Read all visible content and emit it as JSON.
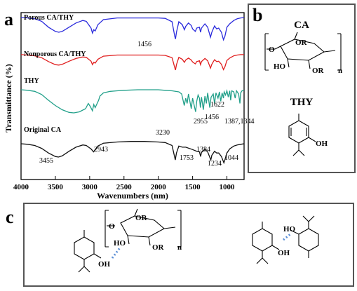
{
  "panels": {
    "a": "a",
    "b": "b",
    "c": "c"
  },
  "chart_data": {
    "type": "line",
    "xlabel": "Wavenumbers (nm)",
    "ylabel": "Transmittance (%)",
    "xlim": [
      4000,
      750
    ],
    "x_reversed": true,
    "xticks": [
      "4000",
      "3500",
      "3000",
      "2500",
      "2000",
      "1500",
      "1000"
    ],
    "grid": false,
    "series": [
      {
        "name": "Porous CA/THY",
        "color": "#2b2bdc",
        "annotations": [
          "1456"
        ],
        "points": [
          [
            4000,
            0.75
          ],
          [
            3900,
            0.74
          ],
          [
            3800,
            0.72
          ],
          [
            3700,
            0.66
          ],
          [
            3600,
            0.52
          ],
          [
            3500,
            0.42
          ],
          [
            3450,
            0.4
          ],
          [
            3400,
            0.42
          ],
          [
            3300,
            0.52
          ],
          [
            3200,
            0.62
          ],
          [
            3100,
            0.68
          ],
          [
            3050,
            0.66
          ],
          [
            2980,
            0.5
          ],
          [
            2960,
            0.38
          ],
          [
            2940,
            0.46
          ],
          [
            2920,
            0.43
          ],
          [
            2880,
            0.58
          ],
          [
            2800,
            0.7
          ],
          [
            2600,
            0.74
          ],
          [
            2400,
            0.74
          ],
          [
            2200,
            0.74
          ],
          [
            2000,
            0.74
          ],
          [
            1900,
            0.73
          ],
          [
            1800,
            0.65
          ],
          [
            1760,
            0.3
          ],
          [
            1750,
            0.24
          ],
          [
            1735,
            0.4
          ],
          [
            1700,
            0.65
          ],
          [
            1650,
            0.58
          ],
          [
            1620,
            0.46
          ],
          [
            1600,
            0.54
          ],
          [
            1560,
            0.62
          ],
          [
            1520,
            0.56
          ],
          [
            1500,
            0.48
          ],
          [
            1460,
            0.42
          ],
          [
            1440,
            0.5
          ],
          [
            1400,
            0.52
          ],
          [
            1385,
            0.4
          ],
          [
            1370,
            0.5
          ],
          [
            1320,
            0.6
          ],
          [
            1280,
            0.52
          ],
          [
            1240,
            0.28
          ],
          [
            1220,
            0.4
          ],
          [
            1180,
            0.55
          ],
          [
            1150,
            0.48
          ],
          [
            1120,
            0.5
          ],
          [
            1080,
            0.4
          ],
          [
            1050,
            0.22
          ],
          [
            1030,
            0.3
          ],
          [
            1000,
            0.52
          ],
          [
            960,
            0.6
          ],
          [
            900,
            0.68
          ],
          [
            850,
            0.72
          ],
          [
            800,
            0.74
          ],
          [
            750,
            0.75
          ]
        ]
      },
      {
        "name": "Nonporous CA/THY",
        "color": "#e01e1e",
        "annotations": [],
        "points": [
          [
            4000,
            0.62
          ],
          [
            3900,
            0.61
          ],
          [
            3800,
            0.59
          ],
          [
            3700,
            0.54
          ],
          [
            3600,
            0.44
          ],
          [
            3500,
            0.36
          ],
          [
            3450,
            0.35
          ],
          [
            3400,
            0.37
          ],
          [
            3300,
            0.45
          ],
          [
            3200,
            0.52
          ],
          [
            3100,
            0.56
          ],
          [
            3050,
            0.55
          ],
          [
            2980,
            0.45
          ],
          [
            2960,
            0.36
          ],
          [
            2940,
            0.42
          ],
          [
            2920,
            0.4
          ],
          [
            2880,
            0.5
          ],
          [
            2800,
            0.58
          ],
          [
            2600,
            0.61
          ],
          [
            2400,
            0.61
          ],
          [
            2200,
            0.61
          ],
          [
            2000,
            0.61
          ],
          [
            1900,
            0.6
          ],
          [
            1800,
            0.54
          ],
          [
            1760,
            0.28
          ],
          [
            1750,
            0.22
          ],
          [
            1735,
            0.36
          ],
          [
            1700,
            0.55
          ],
          [
            1650,
            0.5
          ],
          [
            1620,
            0.42
          ],
          [
            1600,
            0.48
          ],
          [
            1560,
            0.53
          ],
          [
            1520,
            0.48
          ],
          [
            1500,
            0.43
          ],
          [
            1460,
            0.38
          ],
          [
            1440,
            0.44
          ],
          [
            1400,
            0.46
          ],
          [
            1385,
            0.36
          ],
          [
            1370,
            0.44
          ],
          [
            1320,
            0.52
          ],
          [
            1280,
            0.46
          ],
          [
            1240,
            0.27
          ],
          [
            1220,
            0.37
          ],
          [
            1180,
            0.49
          ],
          [
            1150,
            0.44
          ],
          [
            1120,
            0.45
          ],
          [
            1080,
            0.37
          ],
          [
            1050,
            0.23
          ],
          [
            1030,
            0.3
          ],
          [
            1000,
            0.47
          ],
          [
            960,
            0.53
          ],
          [
            900,
            0.59
          ],
          [
            850,
            0.61
          ],
          [
            800,
            0.62
          ],
          [
            750,
            0.62
          ]
        ]
      },
      {
        "name": "THY",
        "color": "#22a08a",
        "annotations": [
          "3230",
          "2955",
          "1622",
          "1456",
          "1387,1344"
        ],
        "points": [
          [
            4000,
            0.56
          ],
          [
            3900,
            0.55
          ],
          [
            3800,
            0.53
          ],
          [
            3700,
            0.47
          ],
          [
            3600,
            0.36
          ],
          [
            3500,
            0.26
          ],
          [
            3400,
            0.18
          ],
          [
            3300,
            0.13
          ],
          [
            3230,
            0.12
          ],
          [
            3150,
            0.14
          ],
          [
            3060,
            0.2
          ],
          [
            3020,
            0.3
          ],
          [
            2990,
            0.24
          ],
          [
            2960,
            0.16
          ],
          [
            2940,
            0.28
          ],
          [
            2920,
            0.22
          ],
          [
            2870,
            0.36
          ],
          [
            2850,
            0.44
          ],
          [
            2800,
            0.5
          ],
          [
            2700,
            0.53
          ],
          [
            2600,
            0.54
          ],
          [
            2500,
            0.55
          ],
          [
            2300,
            0.56
          ],
          [
            2100,
            0.56
          ],
          [
            2000,
            0.56
          ],
          [
            1900,
            0.55
          ],
          [
            1800,
            0.54
          ],
          [
            1700,
            0.52
          ],
          [
            1660,
            0.48
          ],
          [
            1622,
            0.26
          ],
          [
            1600,
            0.4
          ],
          [
            1580,
            0.3
          ],
          [
            1560,
            0.48
          ],
          [
            1520,
            0.2
          ],
          [
            1500,
            0.4
          ],
          [
            1480,
            0.28
          ],
          [
            1456,
            0.14
          ],
          [
            1440,
            0.34
          ],
          [
            1420,
            0.46
          ],
          [
            1400,
            0.4
          ],
          [
            1387,
            0.22
          ],
          [
            1370,
            0.42
          ],
          [
            1344,
            0.18
          ],
          [
            1320,
            0.44
          ],
          [
            1300,
            0.3
          ],
          [
            1280,
            0.5
          ],
          [
            1250,
            0.22
          ],
          [
            1230,
            0.42
          ],
          [
            1200,
            0.48
          ],
          [
            1180,
            0.3
          ],
          [
            1160,
            0.5
          ],
          [
            1130,
            0.4
          ],
          [
            1110,
            0.52
          ],
          [
            1090,
            0.34
          ],
          [
            1070,
            0.5
          ],
          [
            1050,
            0.4
          ],
          [
            1040,
            0.52
          ],
          [
            1020,
            0.46
          ],
          [
            1000,
            0.54
          ],
          [
            980,
            0.42
          ],
          [
            960,
            0.54
          ],
          [
            945,
            0.36
          ],
          [
            930,
            0.54
          ],
          [
            900,
            0.52
          ],
          [
            880,
            0.4
          ],
          [
            860,
            0.54
          ],
          [
            830,
            0.48
          ],
          [
            810,
            0.3
          ],
          [
            800,
            0.5
          ],
          [
            780,
            0.54
          ],
          [
            750,
            0.55
          ]
        ]
      },
      {
        "name": "Original CA",
        "color": "#111111",
        "annotations": [
          "3455",
          "2943",
          "1753",
          "1384",
          "1234",
          "1044"
        ],
        "points": [
          [
            4000,
            0.4
          ],
          [
            3900,
            0.39
          ],
          [
            3800,
            0.37
          ],
          [
            3700,
            0.32
          ],
          [
            3600,
            0.24
          ],
          [
            3500,
            0.18
          ],
          [
            3455,
            0.17
          ],
          [
            3400,
            0.19
          ],
          [
            3300,
            0.27
          ],
          [
            3200,
            0.34
          ],
          [
            3100,
            0.38
          ],
          [
            3050,
            0.37
          ],
          [
            2980,
            0.31
          ],
          [
            2943,
            0.26
          ],
          [
            2920,
            0.3
          ],
          [
            2880,
            0.36
          ],
          [
            2800,
            0.41
          ],
          [
            2600,
            0.43
          ],
          [
            2400,
            0.44
          ],
          [
            2200,
            0.44
          ],
          [
            2000,
            0.43
          ],
          [
            1900,
            0.42
          ],
          [
            1800,
            0.37
          ],
          [
            1760,
            0.16
          ],
          [
            1753,
            0.12
          ],
          [
            1735,
            0.24
          ],
          [
            1700,
            0.36
          ],
          [
            1650,
            0.34
          ],
          [
            1600,
            0.34
          ],
          [
            1500,
            0.3
          ],
          [
            1440,
            0.27
          ],
          [
            1400,
            0.26
          ],
          [
            1384,
            0.18
          ],
          [
            1370,
            0.25
          ],
          [
            1320,
            0.3
          ],
          [
            1280,
            0.26
          ],
          [
            1234,
            0.12
          ],
          [
            1220,
            0.2
          ],
          [
            1180,
            0.27
          ],
          [
            1150,
            0.24
          ],
          [
            1120,
            0.24
          ],
          [
            1080,
            0.18
          ],
          [
            1044,
            0.07
          ],
          [
            1030,
            0.12
          ],
          [
            1000,
            0.24
          ],
          [
            960,
            0.31
          ],
          [
            900,
            0.36
          ],
          [
            850,
            0.38
          ],
          [
            800,
            0.39
          ],
          [
            750,
            0.4
          ]
        ]
      }
    ]
  },
  "structures": {
    "b": {
      "ca_title": "CA",
      "thy_title": "THY",
      "ca_labels": [
        "OR",
        "O",
        "HO",
        "OR",
        "n"
      ],
      "thy_labels": [
        "OH"
      ]
    },
    "c": {
      "left_labels": [
        "OR",
        "O",
        "HO",
        "OR",
        "OH",
        "n"
      ],
      "right_labels": [
        "HO",
        "OH"
      ]
    }
  },
  "colors": {
    "hbond": "#5b8fd6",
    "frame": "#555555"
  }
}
